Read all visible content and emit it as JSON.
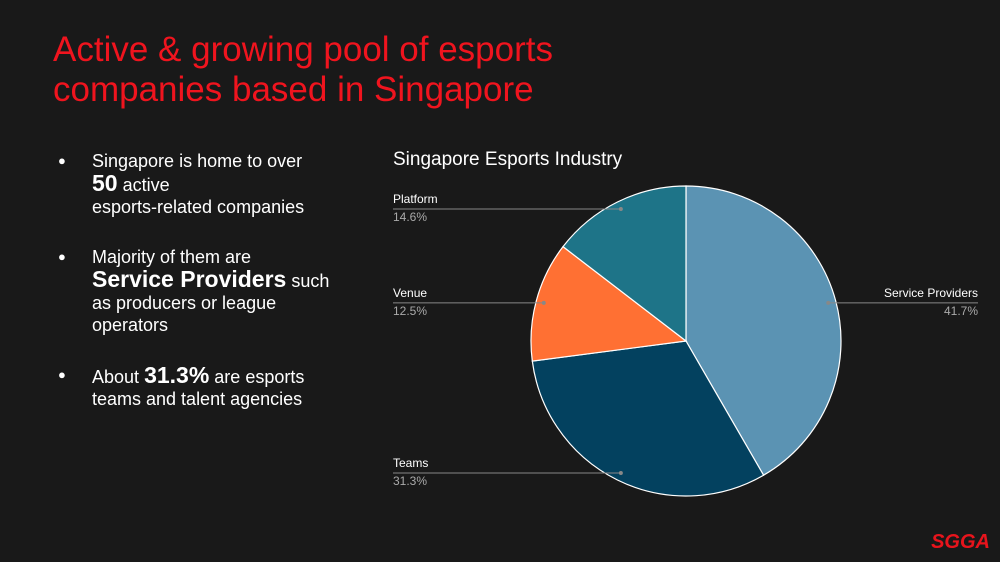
{
  "slide": {
    "title": "Active & growing pool of esports companies based in Singapore",
    "bullets": [
      [
        "Singapore is home to over",
        "50",
        "active",
        "esports-related companies"
      ],
      [
        "Majority of them are",
        "Service Providers",
        "such as producers or league operators"
      ],
      [
        "About",
        "31.3%",
        "are esports teams and talent agencies"
      ]
    ],
    "logo": "SGGA"
  },
  "chart_data": {
    "type": "pie",
    "title": "Singapore Esports Industry",
    "categories": [
      "Service Providers",
      "Teams",
      "Venue",
      "Platform"
    ],
    "values": [
      41.7,
      31.3,
      12.5,
      14.6
    ],
    "value_labels": [
      "41.7%",
      "31.3%",
      "12.5%",
      "14.6%"
    ],
    "colors": [
      "#5b93b3",
      "#03415f",
      "#ff7033",
      "#1e7488"
    ]
  }
}
